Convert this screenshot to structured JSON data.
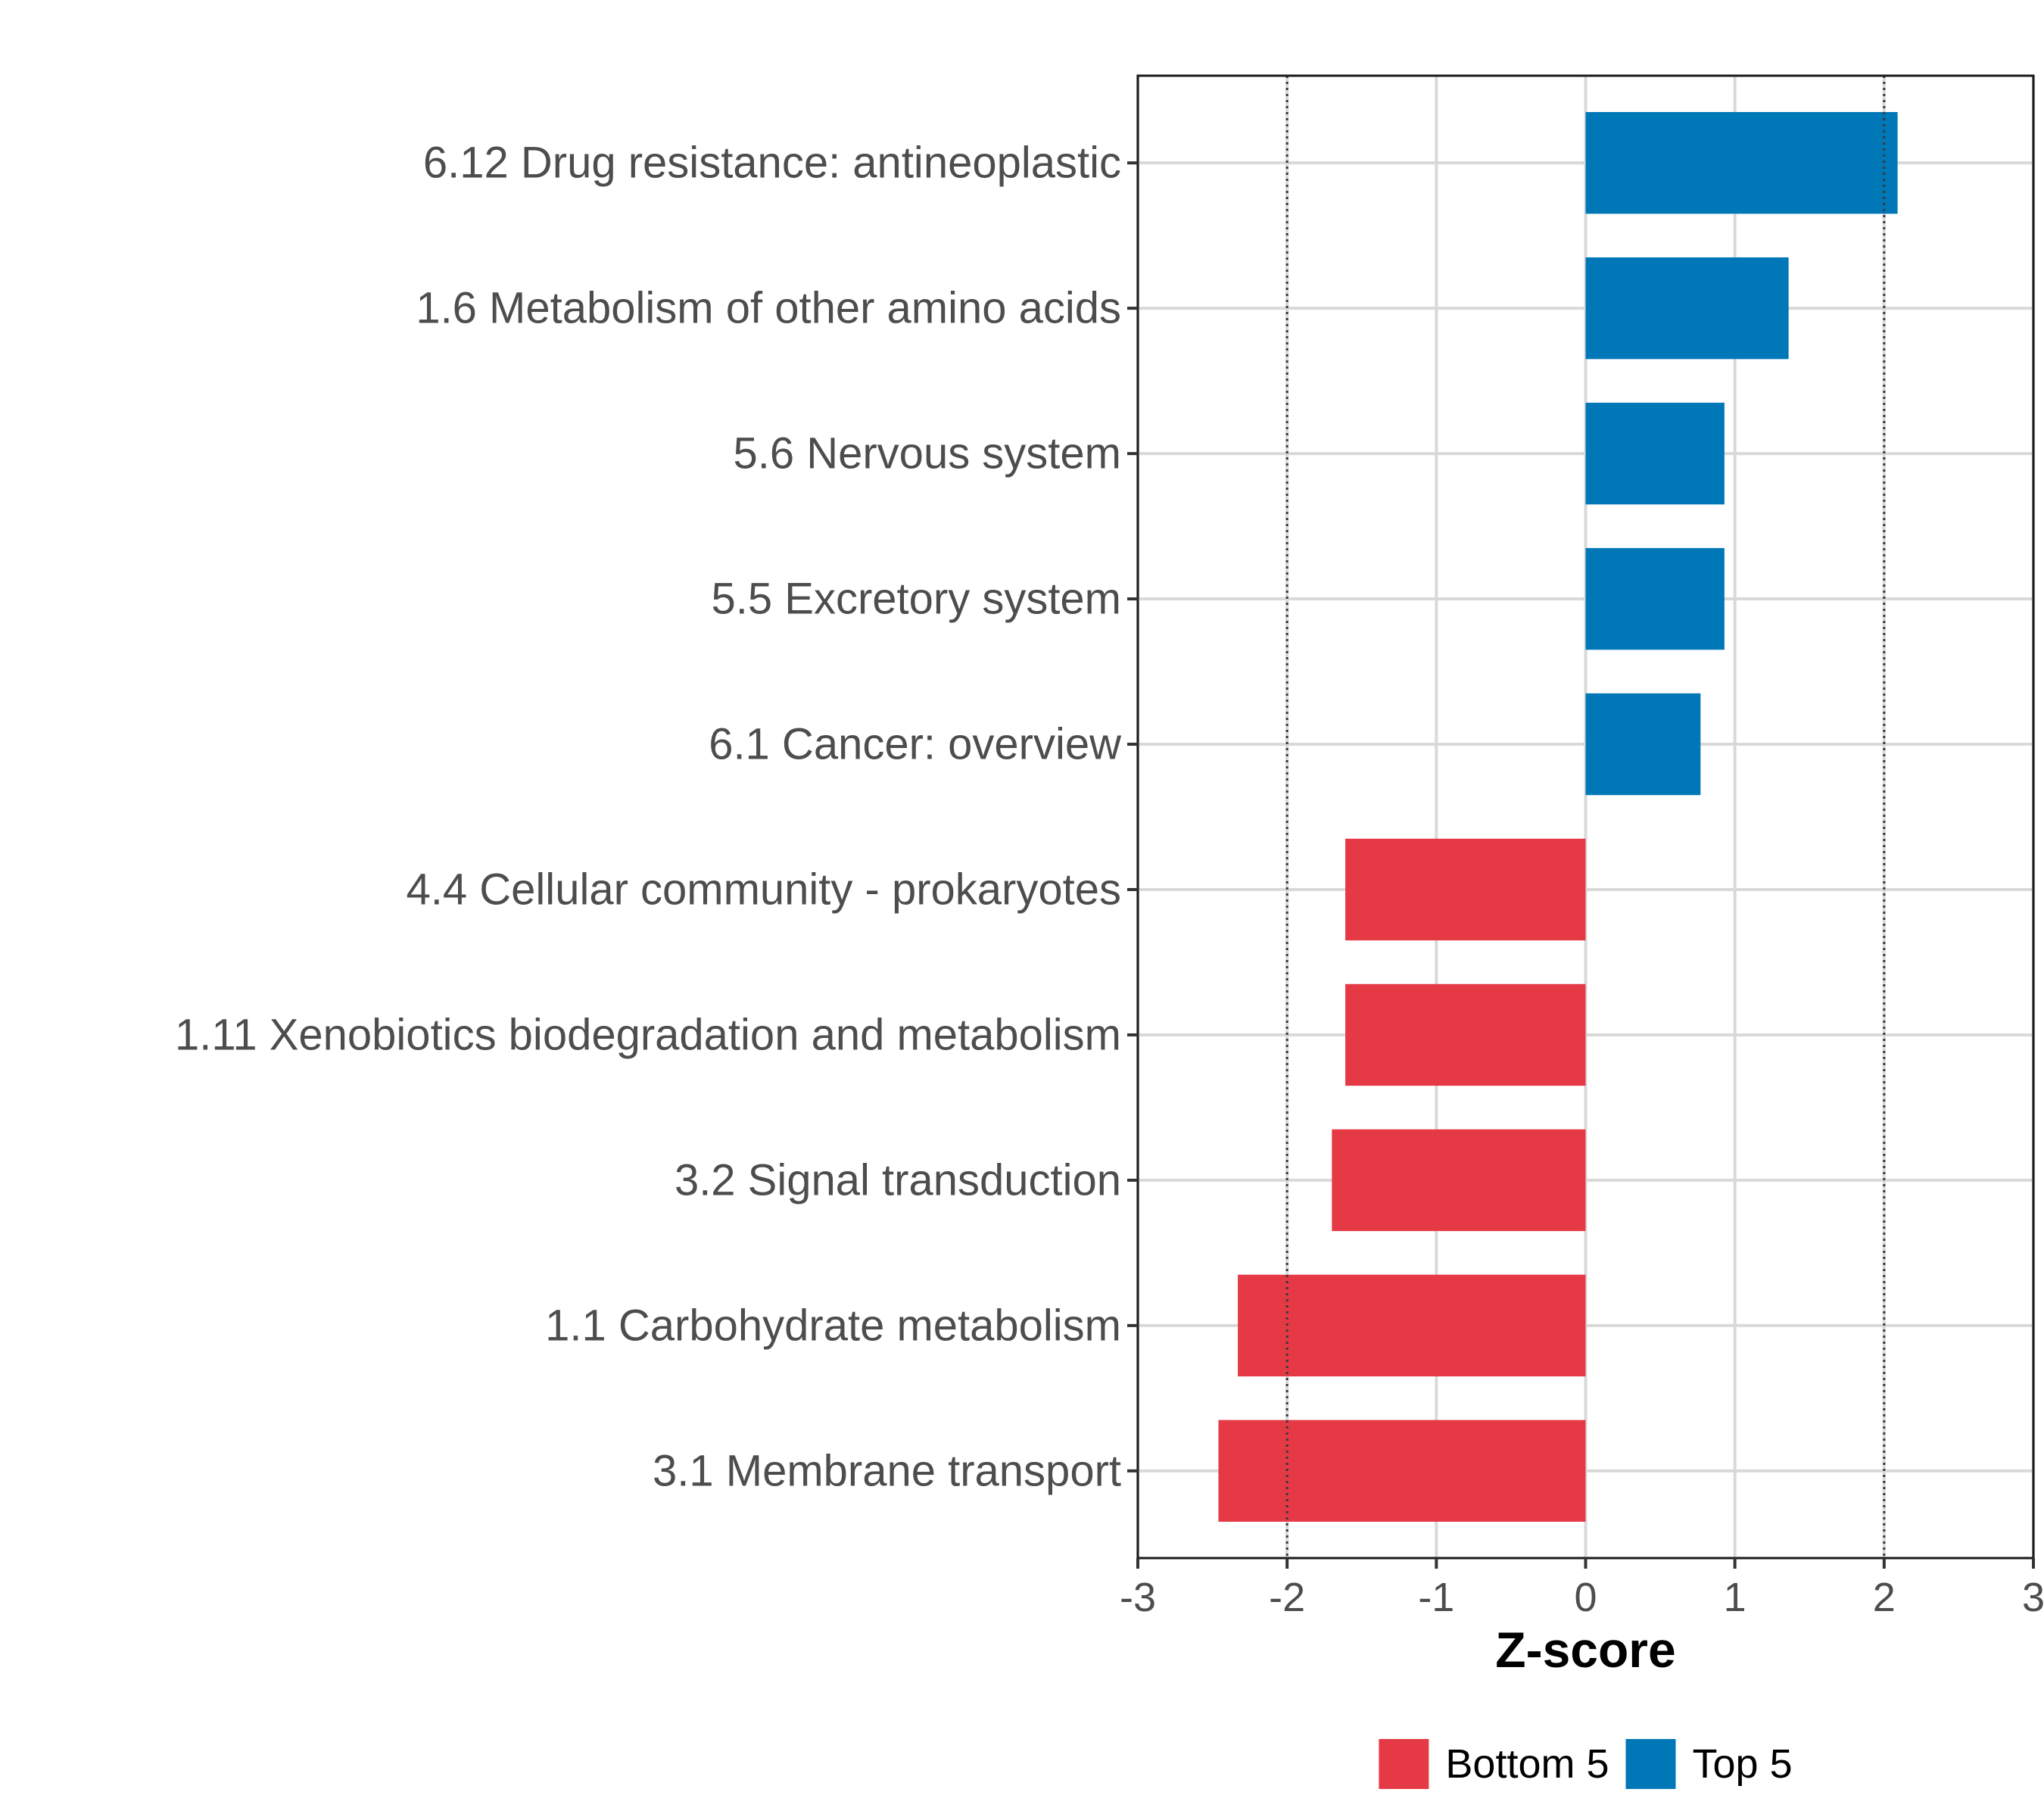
{
  "chart_data": {
    "type": "bar",
    "orientation": "horizontal",
    "xlabel": "Z-score",
    "xlim": [
      -3,
      3
    ],
    "xticks": [
      -3,
      -2,
      -1,
      0,
      1,
      2,
      3
    ],
    "tick_labels": [
      "-3",
      "-2",
      "-1",
      "0",
      "1",
      "2",
      "3"
    ],
    "reference_lines": [
      -2,
      2
    ],
    "grid": true,
    "legend_position": "bottom",
    "categories": [
      "6.12 Drug resistance: antineoplastic",
      "1.6 Metabolism of other amino acids",
      "5.6 Nervous system",
      "5.5 Excretory system",
      "6.1 Cancer: overview",
      "4.4 Cellular community - prokaryotes",
      "1.11 Xenobiotics biodegradation and metabolism",
      "3.2 Signal transduction",
      "1.1 Carbohydrate metabolism",
      "3.1 Membrane transport"
    ],
    "values": [
      2.09,
      1.36,
      0.93,
      0.93,
      0.77,
      -1.61,
      -1.61,
      -1.7,
      -2.33,
      -2.46
    ],
    "groups": [
      "Top 5",
      "Top 5",
      "Top 5",
      "Top 5",
      "Top 5",
      "Bottom 5",
      "Bottom 5",
      "Bottom 5",
      "Bottom 5",
      "Bottom 5"
    ],
    "legend": [
      {
        "name": "Bottom 5",
        "color": "#e63946"
      },
      {
        "name": "Top 5",
        "color": "#0077b6"
      }
    ]
  }
}
